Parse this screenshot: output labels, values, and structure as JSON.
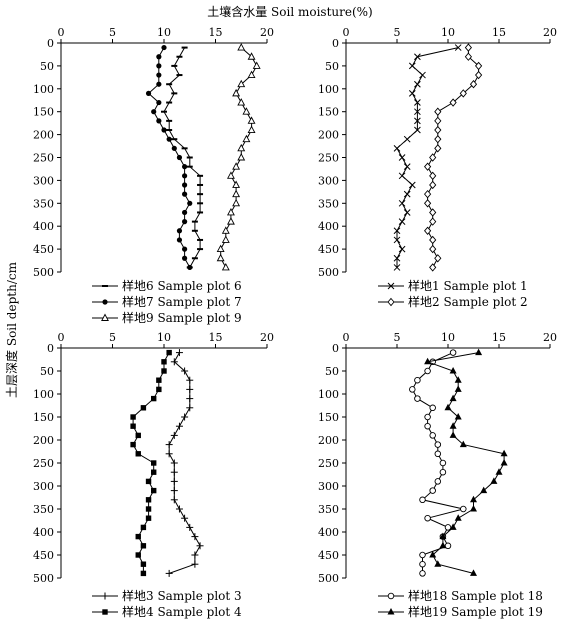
{
  "chart_data": {
    "type": "line",
    "xlabel": "土壤含水量 Soil moisture(%)",
    "ylabel": "土层深度 Soil depth/cm",
    "xlim": [
      0,
      20
    ],
    "ylim": [
      0,
      500
    ],
    "y_inverted": true,
    "x_ticks": [
      0,
      5,
      10,
      15,
      20
    ],
    "y_ticks": [
      0,
      50,
      100,
      150,
      200,
      250,
      300,
      350,
      400,
      450,
      500
    ],
    "grid": false,
    "legend_placement": "below each panel",
    "panels": [
      {
        "series": [
          {
            "name": "样地6 Sample plot 6",
            "marker": "dash",
            "points": [
              [
                12,
                10
              ],
              [
                11.5,
                30
              ],
              [
                11,
                50
              ],
              [
                11.5,
                70
              ],
              [
                10.5,
                90
              ],
              [
                11,
                110
              ],
              [
                10.5,
                130
              ],
              [
                10,
                150
              ],
              [
                10.5,
                170
              ],
              [
                10.5,
                190
              ],
              [
                11,
                210
              ],
              [
                12,
                230
              ],
              [
                12.5,
                250
              ],
              [
                12.5,
                270
              ],
              [
                13.5,
                290
              ],
              [
                13.5,
                310
              ],
              [
                13.5,
                330
              ],
              [
                13.5,
                350
              ],
              [
                13.5,
                370
              ],
              [
                13,
                390
              ],
              [
                13,
                410
              ],
              [
                13.5,
                430
              ],
              [
                13.5,
                450
              ],
              [
                13,
                470
              ],
              [
                12.5,
                490
              ]
            ]
          },
          {
            "name": "样地7 Sample plot 7",
            "marker": "dot",
            "points": [
              [
                10,
                10
              ],
              [
                9.5,
                30
              ],
              [
                9.5,
                50
              ],
              [
                9.5,
                70
              ],
              [
                9.5,
                90
              ],
              [
                8.5,
                110
              ],
              [
                9.5,
                130
              ],
              [
                9,
                150
              ],
              [
                9.5,
                170
              ],
              [
                10,
                190
              ],
              [
                10.5,
                210
              ],
              [
                11,
                230
              ],
              [
                11.5,
                250
              ],
              [
                12,
                270
              ],
              [
                12,
                290
              ],
              [
                12,
                310
              ],
              [
                12,
                330
              ],
              [
                12.5,
                350
              ],
              [
                12,
                370
              ],
              [
                12,
                390
              ],
              [
                11.5,
                410
              ],
              [
                11.5,
                430
              ],
              [
                12,
                450
              ],
              [
                12,
                470
              ],
              [
                12.5,
                490
              ]
            ]
          },
          {
            "name": "样地9 Sample plot 9",
            "marker": "triangle",
            "points": [
              [
                17.5,
                10
              ],
              [
                18.5,
                30
              ],
              [
                19,
                50
              ],
              [
                18.5,
                70
              ],
              [
                17.5,
                90
              ],
              [
                17,
                110
              ],
              [
                17.5,
                130
              ],
              [
                18,
                150
              ],
              [
                18.5,
                170
              ],
              [
                18.5,
                190
              ],
              [
                18,
                210
              ],
              [
                17.5,
                230
              ],
              [
                17.5,
                250
              ],
              [
                17,
                270
              ],
              [
                16.5,
                290
              ],
              [
                17,
                310
              ],
              [
                17,
                330
              ],
              [
                17,
                350
              ],
              [
                16.5,
                370
              ],
              [
                16.5,
                390
              ],
              [
                16,
                410
              ],
              [
                16,
                430
              ],
              [
                15.5,
                450
              ],
              [
                15.5,
                470
              ],
              [
                16,
                490
              ]
            ]
          }
        ]
      },
      {
        "series": [
          {
            "name": "样地1 Sample plot 1",
            "marker": "x",
            "points": [
              [
                11,
                10
              ],
              [
                7,
                30
              ],
              [
                6.5,
                50
              ],
              [
                7.5,
                70
              ],
              [
                7,
                90
              ],
              [
                6.5,
                110
              ],
              [
                7,
                130
              ],
              [
                7,
                150
              ],
              [
                7,
                170
              ],
              [
                7,
                190
              ],
              [
                6,
                210
              ],
              [
                5,
                230
              ],
              [
                5.5,
                250
              ],
              [
                6,
                270
              ],
              [
                5.5,
                290
              ],
              [
                6.5,
                310
              ],
              [
                6,
                330
              ],
              [
                5.5,
                350
              ],
              [
                6,
                370
              ],
              [
                5.5,
                390
              ],
              [
                5,
                410
              ],
              [
                5,
                430
              ],
              [
                5.5,
                450
              ],
              [
                5,
                470
              ],
              [
                5,
                490
              ]
            ]
          },
          {
            "name": "样地2 Sample plot 2",
            "marker": "diamond",
            "points": [
              [
                12,
                10
              ],
              [
                12,
                30
              ],
              [
                13,
                50
              ],
              [
                13,
                70
              ],
              [
                12.5,
                90
              ],
              [
                11.5,
                110
              ],
              [
                10.5,
                130
              ],
              [
                9,
                150
              ],
              [
                9,
                170
              ],
              [
                9,
                190
              ],
              [
                9,
                210
              ],
              [
                9,
                230
              ],
              [
                8.5,
                250
              ],
              [
                8,
                270
              ],
              [
                8.5,
                290
              ],
              [
                8.5,
                310
              ],
              [
                8,
                330
              ],
              [
                8,
                350
              ],
              [
                8.5,
                370
              ],
              [
                8.5,
                390
              ],
              [
                8,
                410
              ],
              [
                8.5,
                430
              ],
              [
                8.5,
                450
              ],
              [
                9,
                470
              ],
              [
                8.5,
                490
              ]
            ]
          }
        ]
      },
      {
        "series": [
          {
            "name": "样地3 Sample plot 3",
            "marker": "plus",
            "points": [
              [
                11.5,
                10
              ],
              [
                11,
                30
              ],
              [
                12,
                50
              ],
              [
                12.5,
                70
              ],
              [
                12.5,
                90
              ],
              [
                12.5,
                110
              ],
              [
                12.5,
                130
              ],
              [
                12,
                150
              ],
              [
                11.5,
                170
              ],
              [
                11,
                190
              ],
              [
                10.5,
                210
              ],
              [
                10.5,
                230
              ],
              [
                11,
                250
              ],
              [
                11,
                270
              ],
              [
                11,
                290
              ],
              [
                11,
                310
              ],
              [
                11,
                330
              ],
              [
                11.5,
                350
              ],
              [
                12,
                370
              ],
              [
                12.5,
                390
              ],
              [
                13,
                410
              ],
              [
                13.5,
                430
              ],
              [
                13,
                450
              ],
              [
                13,
                470
              ],
              [
                10.5,
                490
              ]
            ]
          },
          {
            "name": "样地4 Sample plot 4",
            "marker": "square",
            "points": [
              [
                10.5,
                10
              ],
              [
                10,
                30
              ],
              [
                10,
                50
              ],
              [
                9.5,
                70
              ],
              [
                9.5,
                90
              ],
              [
                9,
                110
              ],
              [
                8,
                130
              ],
              [
                7,
                150
              ],
              [
                7,
                170
              ],
              [
                7.5,
                190
              ],
              [
                7,
                210
              ],
              [
                7.5,
                230
              ],
              [
                9,
                250
              ],
              [
                9,
                270
              ],
              [
                8.5,
                290
              ],
              [
                9,
                310
              ],
              [
                8.5,
                330
              ],
              [
                8.5,
                350
              ],
              [
                8.5,
                370
              ],
              [
                8,
                390
              ],
              [
                7.5,
                410
              ],
              [
                8,
                430
              ],
              [
                7.5,
                450
              ],
              [
                8,
                470
              ],
              [
                8,
                490
              ]
            ]
          }
        ]
      },
      {
        "series": [
          {
            "name": "样地18 Sample plot 18",
            "marker": "circle",
            "points": [
              [
                10.5,
                10
              ],
              [
                8.5,
                30
              ],
              [
                8,
                50
              ],
              [
                7,
                70
              ],
              [
                6.5,
                90
              ],
              [
                7,
                110
              ],
              [
                8.5,
                130
              ],
              [
                8,
                150
              ],
              [
                8,
                170
              ],
              [
                8.5,
                190
              ],
              [
                9,
                210
              ],
              [
                9,
                230
              ],
              [
                9.5,
                250
              ],
              [
                9.5,
                270
              ],
              [
                9,
                290
              ],
              [
                8.5,
                310
              ],
              [
                7.5,
                330
              ],
              [
                11.5,
                350
              ],
              [
                8,
                370
              ],
              [
                10,
                390
              ],
              [
                9.5,
                410
              ],
              [
                10,
                430
              ],
              [
                7.5,
                450
              ],
              [
                7.5,
                470
              ],
              [
                7.5,
                490
              ]
            ]
          },
          {
            "name": "样地19 Sample plot 19",
            "marker": "filled-triangle",
            "points": [
              [
                13,
                10
              ],
              [
                8,
                30
              ],
              [
                10.5,
                50
              ],
              [
                11,
                70
              ],
              [
                11,
                90
              ],
              [
                10.5,
                110
              ],
              [
                10,
                130
              ],
              [
                11,
                150
              ],
              [
                10.5,
                170
              ],
              [
                10.5,
                190
              ],
              [
                11.5,
                210
              ],
              [
                15.5,
                230
              ],
              [
                15.5,
                250
              ],
              [
                15,
                270
              ],
              [
                14.5,
                290
              ],
              [
                13.5,
                310
              ],
              [
                12.5,
                330
              ],
              [
                12.5,
                350
              ],
              [
                11,
                370
              ],
              [
                10.5,
                390
              ],
              [
                9.5,
                410
              ],
              [
                9.5,
                430
              ],
              [
                8.5,
                450
              ],
              [
                9,
                470
              ],
              [
                12.5,
                490
              ]
            ]
          }
        ]
      }
    ]
  }
}
